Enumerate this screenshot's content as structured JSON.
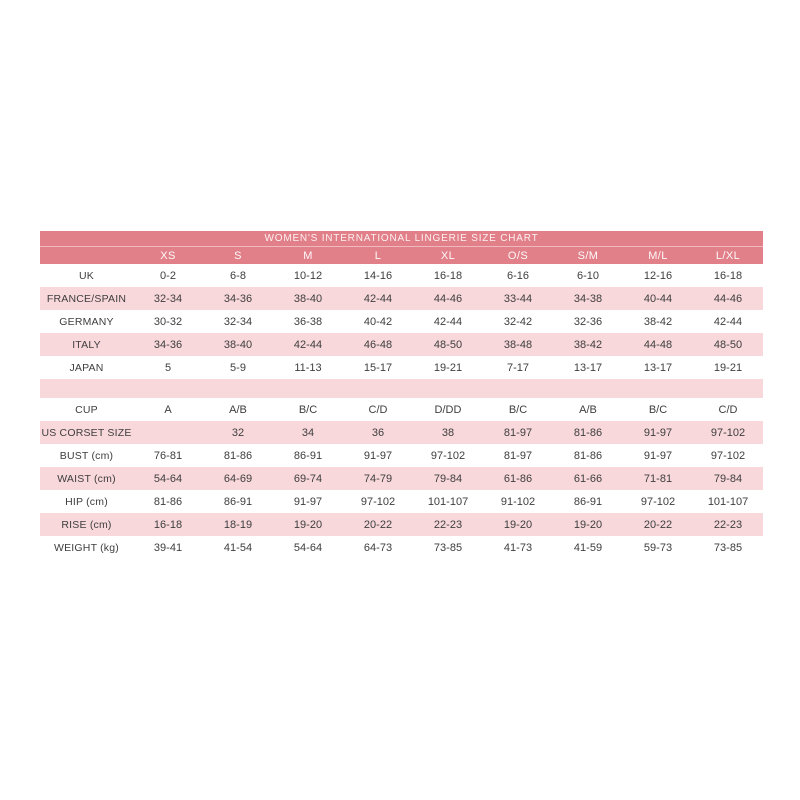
{
  "page": {
    "background": "#ffffff"
  },
  "chart_data": {
    "type": "table",
    "title": "WOMEN'S INTERNATIONAL LINGERIE SIZE CHART",
    "row_label_column_header": "",
    "columns": [
      "XS",
      "S",
      "M",
      "L",
      "XL",
      "O/S",
      "S/M",
      "M/L",
      "L/XL"
    ],
    "rows": [
      {
        "label": "UK",
        "values": [
          "0-2",
          "6-8",
          "10-12",
          "14-16",
          "16-18",
          "6-16",
          "6-10",
          "12-16",
          "16-18"
        ]
      },
      {
        "label": "FRANCE/SPAIN",
        "values": [
          "32-34",
          "34-36",
          "38-40",
          "42-44",
          "44-46",
          "33-44",
          "34-38",
          "40-44",
          "44-46"
        ]
      },
      {
        "label": "GERMANY",
        "values": [
          "30-32",
          "32-34",
          "36-38",
          "40-42",
          "42-44",
          "32-42",
          "32-36",
          "38-42",
          "42-44"
        ]
      },
      {
        "label": "ITALY",
        "values": [
          "34-36",
          "38-40",
          "42-44",
          "46-48",
          "48-50",
          "38-48",
          "38-42",
          "44-48",
          "48-50"
        ]
      },
      {
        "label": "JAPAN",
        "values": [
          "5",
          "5-9",
          "11-13",
          "15-17",
          "19-21",
          "7-17",
          "13-17",
          "13-17",
          "19-21"
        ]
      },
      {
        "label": "",
        "values": [
          "",
          "",
          "",
          "",
          "",
          "",
          "",
          "",
          ""
        ],
        "spacer": true
      },
      {
        "label": "CUP",
        "values": [
          "A",
          "A/B",
          "B/C",
          "C/D",
          "D/DD",
          "B/C",
          "A/B",
          "B/C",
          "C/D"
        ]
      },
      {
        "label": "US CORSET SIZE",
        "values": [
          "",
          "32",
          "34",
          "36",
          "38",
          "81-97",
          "81-86",
          "91-97",
          "97-102"
        ]
      },
      {
        "label": "BUST (cm)",
        "values": [
          "76-81",
          "81-86",
          "86-91",
          "91-97",
          "97-102",
          "81-97",
          "81-86",
          "91-97",
          "97-102"
        ]
      },
      {
        "label": "WAIST (cm)",
        "values": [
          "54-64",
          "64-69",
          "69-74",
          "74-79",
          "79-84",
          "61-86",
          "61-66",
          "71-81",
          "79-84"
        ]
      },
      {
        "label": "HIP (cm)",
        "values": [
          "81-86",
          "86-91",
          "91-97",
          "97-102",
          "101-107",
          "91-102",
          "86-91",
          "97-102",
          "101-107"
        ]
      },
      {
        "label": "RISE (cm)",
        "values": [
          "16-18",
          "18-19",
          "19-20",
          "20-22",
          "22-23",
          "19-20",
          "19-20",
          "20-22",
          "22-23"
        ]
      },
      {
        "label": "WEIGHT (kg)",
        "values": [
          "39-41",
          "41-54",
          "54-64",
          "64-73",
          "73-85",
          "41-73",
          "41-59",
          "59-73",
          "73-85"
        ]
      }
    ],
    "colors": {
      "header_bg": "#e2808a",
      "header_text": "#ffffff",
      "alt_row_bg": "#f8d8db",
      "row_bg": "#ffffff",
      "body_text": "#3e3e3e"
    },
    "layout_hints": {
      "grid": false,
      "legend_position": "none",
      "alternating_rows": true
    }
  }
}
